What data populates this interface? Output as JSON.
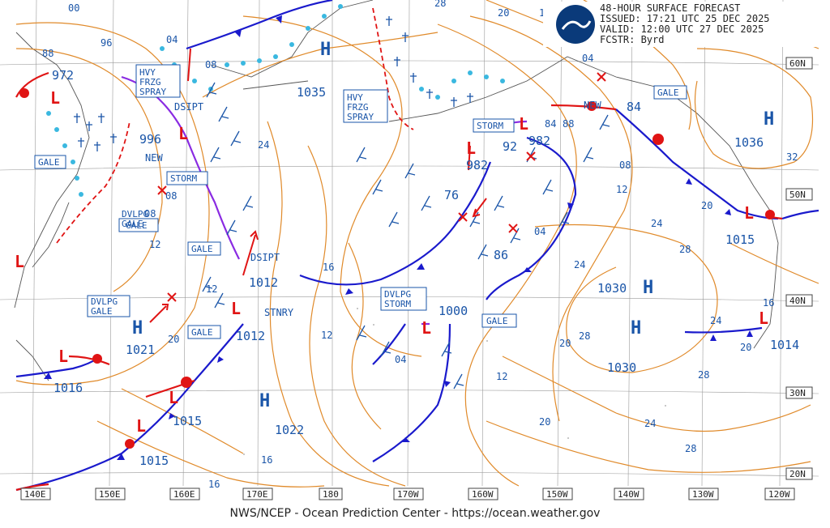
{
  "header": {
    "line1": "48-HOUR SURFACE FORECAST",
    "line2": "ISSUED: 17:21 UTC 25 DEC 2025",
    "line3": "VALID:  12:00 UTC 27 DEC 2025",
    "line4": "FCSTR:  Byrd"
  },
  "footer": "NWS/NCEP - Ocean Prediction Center - https://ocean.weather.gov",
  "longitudes": [
    "140E",
    "150E",
    "160E",
    "170E",
    "180",
    "170W",
    "160W",
    "150W",
    "140W",
    "130W",
    "120W"
  ],
  "latitudes": [
    "60N",
    "50N",
    "40N",
    "30N",
    "20N"
  ],
  "pressure_centers": [
    {
      "type": "H",
      "value": "1035"
    },
    {
      "type": "H",
      "value": "1036"
    },
    {
      "type": "H",
      "value": "1030"
    },
    {
      "type": "H",
      "value": "1030"
    },
    {
      "type": "H",
      "value": "1021"
    },
    {
      "type": "H",
      "value": "1022"
    },
    {
      "type": "L",
      "value": "972"
    },
    {
      "type": "L",
      "value": "996"
    },
    {
      "type": "L",
      "value": "1012"
    },
    {
      "type": "L",
      "value": "1012"
    },
    {
      "type": "L",
      "value": "1016"
    },
    {
      "type": "L",
      "value": "1015"
    },
    {
      "type": "L",
      "value": "1015"
    },
    {
      "type": "L",
      "value": "1015"
    },
    {
      "type": "L",
      "value": "1000"
    },
    {
      "type": "L",
      "value": "982"
    },
    {
      "type": "L",
      "value": "982"
    },
    {
      "type": "L",
      "value": "1014"
    }
  ],
  "small_values": [
    "00",
    "96",
    "04",
    "08",
    "92",
    "76",
    "86",
    "84",
    "88",
    "28",
    "20",
    "16",
    "24",
    "12",
    "32",
    "04",
    "08",
    "04",
    "12",
    "08",
    "84",
    "88"
  ],
  "warnings": [
    "GALE",
    "GALE",
    "GALE",
    "GALE",
    "GALE",
    "GALE",
    "STORM",
    "STORM",
    "DVLPG GALE",
    "DVLPG GALE",
    "DVLPG STORM",
    "HVY FRZG SPRAY",
    "HVY FRZG SPRAY"
  ],
  "annotations": [
    "DSIPT",
    "DSIPT",
    "NEW",
    "NEW",
    "STNRY"
  ],
  "isobar_labels": [
    "16",
    "12",
    "20",
    "24",
    "28",
    "20",
    "24",
    "28",
    "16",
    "20",
    "24",
    "28",
    "20",
    "16",
    "12",
    "04",
    "08",
    "12",
    "16",
    "20",
    "24",
    "28"
  ],
  "colors": {
    "isobar": "#e08a2a",
    "cold_front": "#1a1acc",
    "warm_front": "#e01414",
    "occluded": "#8a2be2",
    "ice": "#3ab8e0",
    "label_blue": "#1a55a8",
    "grid": "#9a9a9a",
    "land": "#555555"
  }
}
